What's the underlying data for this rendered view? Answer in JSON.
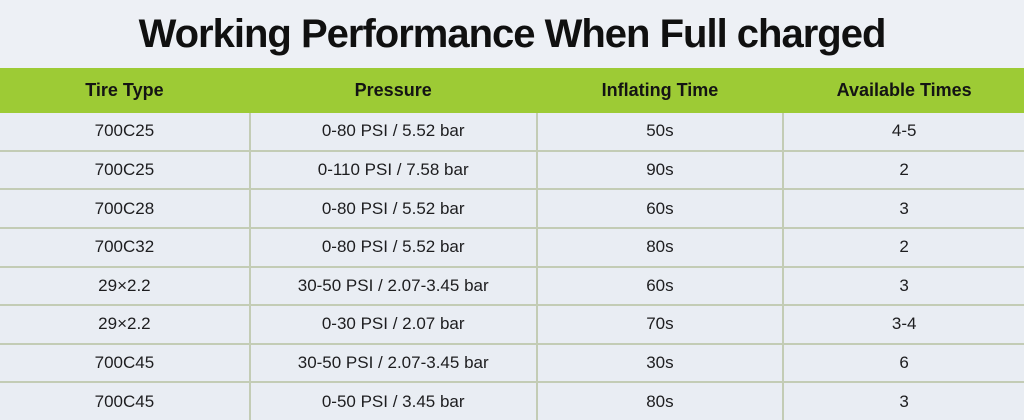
{
  "title": "Working Performance When Full charged",
  "colors": {
    "page-bg": "#edf0f5",
    "header-bg": "#9dcb35",
    "header-text": "#141414",
    "row-bg": "#e9edf3",
    "divider": "#c3ccb5",
    "text": "#1d1d1f"
  },
  "table": {
    "columns": [
      "Tire Type",
      "Pressure",
      "Inflating Time",
      "Available Times"
    ],
    "rows": [
      [
        "700C25",
        "0-80 PSI / 5.52 bar",
        "50s",
        "4-5"
      ],
      [
        "700C25",
        "0-110 PSI / 7.58 bar",
        "90s",
        "2"
      ],
      [
        "700C28",
        "0-80 PSI / 5.52 bar",
        "60s",
        "3"
      ],
      [
        "700C32",
        "0-80 PSI / 5.52 bar",
        "80s",
        "2"
      ],
      [
        "29×2.2",
        "30-50 PSI / 2.07-3.45 bar",
        "60s",
        "3"
      ],
      [
        "29×2.2",
        "0-30 PSI / 2.07 bar",
        "70s",
        "3-4"
      ],
      [
        "700C45",
        "30-50 PSI / 2.07-3.45 bar",
        "30s",
        "6"
      ],
      [
        "700C45",
        "0-50 PSI / 3.45 bar",
        "80s",
        "3"
      ]
    ]
  }
}
